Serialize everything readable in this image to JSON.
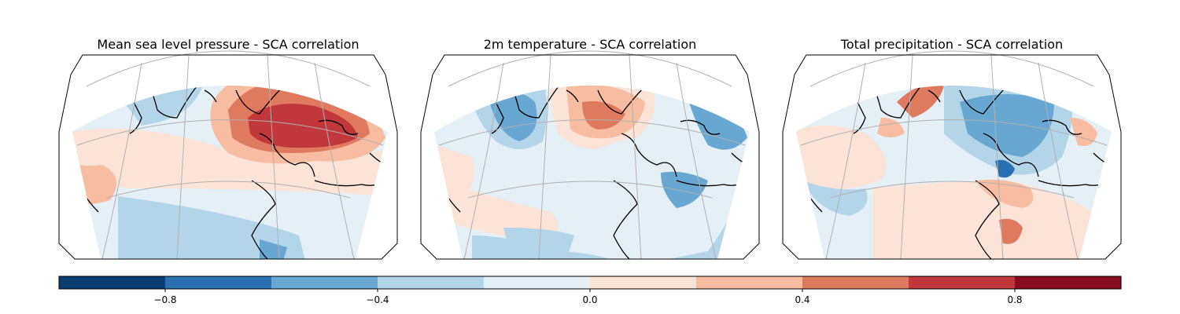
{
  "panels": [
    {
      "title": "Mean sea level pressure - SCA correlation"
    },
    {
      "title": "2m temperature - SCA correlation"
    },
    {
      "title": "Total precipitation - SCA correlation"
    }
  ],
  "colorbar": {
    "ticks": [
      {
        "value": -0.8,
        "label": "−0.8"
      },
      {
        "value": -0.4,
        "label": "−0.4"
      },
      {
        "value": 0.0,
        "label": "0.0"
      },
      {
        "value": 0.4,
        "label": "0.4"
      },
      {
        "value": 0.8,
        "label": "0.8"
      }
    ],
    "range": [
      -1.0,
      1.0
    ],
    "levels": [
      -1.0,
      -0.8,
      -0.6,
      -0.4,
      -0.2,
      0.0,
      0.2,
      0.4,
      0.6,
      0.8,
      1.0
    ],
    "colors": [
      "#0b3c72",
      "#2a70b1",
      "#67a7d1",
      "#b3d5e8",
      "#e5eff6",
      "#fbe4d7",
      "#f8bca0",
      "#e07a5f",
      "#c1373a",
      "#8a0c22"
    ]
  }
}
